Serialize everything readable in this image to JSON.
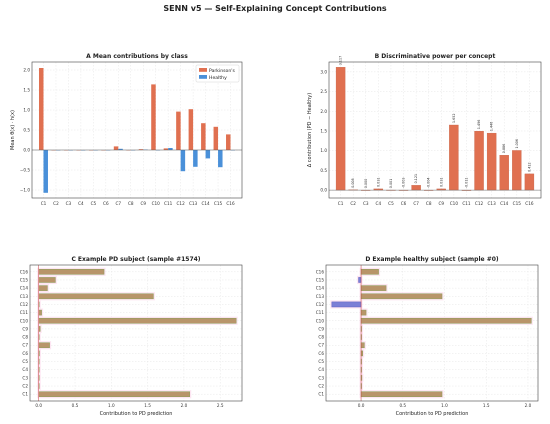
{
  "title": "SENN v5 — Self-Explaining Concept Contributions",
  "colors": {
    "parkinsons": "#e07050",
    "healthy": "#4a90d9",
    "bar_pos": "#b8956a",
    "bar_pos_edge": "#8aa05a",
    "bar_neg": "#7b7fd6",
    "halo": "#fde0f0",
    "zero_line": "#c84040"
  },
  "chart_data": [
    {
      "id": "A",
      "type": "bar",
      "title": "A  Mean contributions by class",
      "xlabel": "",
      "ylabel": "Mean θ(x) · h(x)",
      "ylim": [
        -1.2,
        2.2
      ],
      "yticks": [
        -1.0,
        -0.5,
        0.0,
        0.5,
        1.0,
        1.5,
        2.0
      ],
      "ytick_labels": [
        "−1.0",
        "−0.5",
        "0.0",
        "0.5",
        "1.0",
        "1.5",
        "2.0"
      ],
      "categories": [
        "C1",
        "C2",
        "C3",
        "C4",
        "C5",
        "C6",
        "C7",
        "C8",
        "C9",
        "C10",
        "C11",
        "C12",
        "C13",
        "C14",
        "C15",
        "C16"
      ],
      "series": [
        {
          "name": "Parkinson's",
          "values": [
            2.05,
            0.0,
            0.0,
            0.0,
            0.0,
            0.0,
            0.09,
            0.0,
            0.02,
            1.64,
            0.04,
            0.96,
            1.02,
            0.67,
            0.58,
            0.39
          ]
        },
        {
          "name": "Healthy",
          "values": [
            -1.07,
            0.0,
            0.0,
            -0.01,
            0.0,
            0.0,
            0.03,
            0.0,
            0.01,
            0.0,
            0.05,
            -0.53,
            -0.42,
            -0.21,
            -0.43,
            0.0
          ]
        }
      ],
      "legend": "top-right",
      "grid": true
    },
    {
      "id": "B",
      "type": "bar",
      "title": "B  Discriminative power per concept",
      "xlabel": "",
      "ylabel": "Δ contribution (PD − Healthy)",
      "ylim": [
        -0.2,
        3.25
      ],
      "yticks": [
        0.0,
        0.5,
        1.0,
        1.5,
        2.0,
        2.5,
        3.0
      ],
      "ytick_labels": [
        "0.0",
        "0.5",
        "1.0",
        "1.5",
        "2.0",
        "2.5",
        "3.0"
      ],
      "categories": [
        "C1",
        "C2",
        "C3",
        "C4",
        "C5",
        "C6",
        "C7",
        "C8",
        "C9",
        "C10",
        "C11",
        "C12",
        "C13",
        "C14",
        "C15",
        "C16"
      ],
      "values": [
        3.117,
        0.008,
        0.0,
        0.031,
        0.001,
        -0.003,
        0.121,
        -0.004,
        0.031,
        1.652,
        -0.011,
        1.496,
        1.446,
        0.886,
        1.006,
        0.412
      ],
      "data_labels": [
        "3.117",
        "0.008",
        "0.000",
        "0.031",
        "0.001",
        "-0.003",
        "0.121",
        "-0.004",
        "0.031",
        "1.652",
        "-0.011",
        "1.496",
        "1.446",
        "0.886",
        "1.006",
        "0.412"
      ],
      "grid": true
    },
    {
      "id": "C",
      "type": "bar",
      "title": "C  Example PD subject (sample #1574)",
      "xlabel": "Contribution to PD prediction",
      "ylabel": "",
      "xlim": [
        -0.12,
        2.8
      ],
      "xticks": [
        0.0,
        0.5,
        1.0,
        1.5,
        2.0,
        2.5
      ],
      "xtick_labels": [
        "0.0",
        "0.5",
        "1.0",
        "1.5",
        "2.0",
        "2.5"
      ],
      "categories": [
        "C1",
        "C2",
        "C3",
        "C4",
        "C5",
        "C6",
        "C7",
        "C8",
        "C9",
        "C10",
        "C11",
        "C12",
        "C13",
        "C14",
        "C15",
        "C16"
      ],
      "values": [
        2.08,
        0.0,
        0.0,
        0.0,
        0.0,
        0.01,
        0.15,
        0.0,
        0.02,
        2.72,
        0.04,
        0.0,
        1.58,
        0.12,
        0.23,
        0.9
      ],
      "grid": true
    },
    {
      "id": "D",
      "type": "bar",
      "title": "D  Example healthy subject (sample #0)",
      "xlabel": "Contribution to PD prediction",
      "ylabel": "",
      "xlim": [
        -0.42,
        2.12
      ],
      "xticks": [
        0.0,
        0.5,
        1.0,
        1.5,
        2.0
      ],
      "xtick_labels": [
        "0.0",
        "0.5",
        "1.0",
        "1.5",
        "2.0"
      ],
      "categories": [
        "C1",
        "C2",
        "C3",
        "C4",
        "C5",
        "C6",
        "C7",
        "C8",
        "C9",
        "C10",
        "C11",
        "C12",
        "C13",
        "C14",
        "C15",
        "C16"
      ],
      "values": [
        0.97,
        0.0,
        0.01,
        0.0,
        0.0,
        0.02,
        0.04,
        0.0,
        0.0,
        2.04,
        0.06,
        -0.35,
        0.97,
        0.3,
        -0.03,
        0.21
      ],
      "grid": true
    }
  ]
}
